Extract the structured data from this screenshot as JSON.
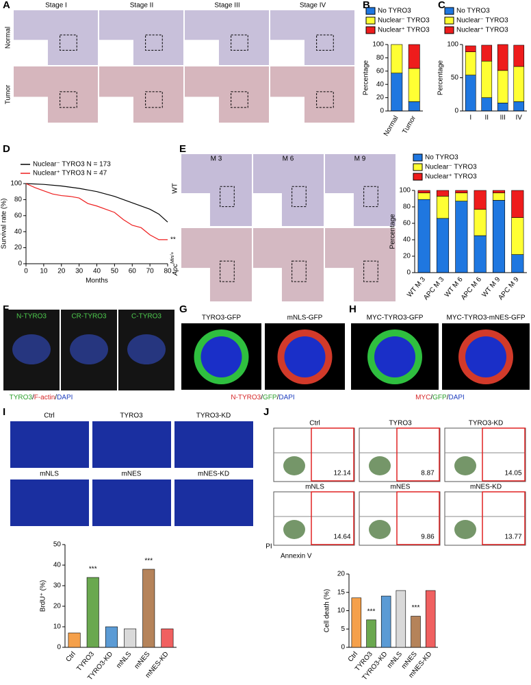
{
  "panel_labels": [
    "A",
    "B",
    "C",
    "D",
    "E",
    "F",
    "G",
    "H",
    "I",
    "J"
  ],
  "panel_a": {
    "columns": [
      "Stage I",
      "Stage II",
      "Stage III",
      "Stage IV"
    ],
    "rows": [
      "Normal",
      "Tumor"
    ]
  },
  "panel_e": {
    "columns": [
      "M 3",
      "M 6",
      "M 9"
    ],
    "wild_type": "WT",
    "mutant": {
      "base": "Apc",
      "sup": "Min/+"
    }
  },
  "panel_f": {
    "columns": [
      "N-TYRO3",
      "CR-TYRO3",
      "C-TYRO3"
    ],
    "caption": [
      {
        "text": "TYRO3",
        "color": "#2ca02c"
      },
      {
        "text": "/",
        "color": "#000000"
      },
      {
        "text": "F-actin",
        "color": "#d62728"
      },
      {
        "text": "/",
        "color": "#000000"
      },
      {
        "text": "DAPI",
        "color": "#1f3fbf"
      }
    ]
  },
  "panel_g": {
    "columns": [
      "TYRO3-GFP",
      "mNLS-GFP"
    ],
    "caption": [
      {
        "text": "N-TYRO3",
        "color": "#d62728"
      },
      {
        "text": "/",
        "color": "#000000"
      },
      {
        "text": "GFP",
        "color": "#2ca02c"
      },
      {
        "text": "/",
        "color": "#000000"
      },
      {
        "text": "DAPI",
        "color": "#1f3fbf"
      }
    ]
  },
  "panel_h": {
    "columns": [
      "MYC-TYRO3-GFP",
      "MYC-TYRO3-mNES-GFP"
    ],
    "caption": [
      {
        "text": "MYC",
        "color": "#d62728"
      },
      {
        "text": "/",
        "color": "#000000"
      },
      {
        "text": "GFP",
        "color": "#2ca02c"
      },
      {
        "text": "/",
        "color": "#000000"
      },
      {
        "text": "DAPI",
        "color": "#1f3fbf"
      }
    ]
  },
  "panel_i": {
    "images": [
      "Ctrl",
      "TYRO3",
      "TYRO3-KD",
      "mNLS",
      "mNES",
      "mNES-KD"
    ]
  },
  "panel_j": {
    "plots": [
      {
        "label": "Ctrl",
        "value": 12.14
      },
      {
        "label": "TYRO3",
        "value": 8.87
      },
      {
        "label": "TYRO3-KD",
        "value": 14.05
      },
      {
        "label": "mNLS",
        "value": 14.64
      },
      {
        "label": "mNES",
        "value": 9.86
      },
      {
        "label": "mNES-KD",
        "value": 13.77
      }
    ],
    "y_label": "PI",
    "x_label": "Annexin V"
  },
  "chart_data": [
    {
      "type": "stacked_bar",
      "categories": [
        "Normal",
        "Tumor"
      ],
      "series": [
        {
          "name": "No TYRO3",
          "color": "#1f77e0",
          "values": [
            57,
            14
          ]
        },
        {
          "name": "Nuclear⁻ TYRO3",
          "color": "#ffff33",
          "values": [
            43,
            50
          ]
        },
        {
          "name": "Nuclear⁺ TYRO3",
          "color": "#ee1c1c",
          "values": [
            0,
            36
          ]
        }
      ],
      "ylim": [
        0,
        100
      ],
      "yticks": [
        0,
        20,
        40,
        60,
        80,
        100
      ],
      "y_label": "Percentage"
    },
    {
      "type": "stacked_bar",
      "categories": [
        "I",
        "II",
        "III",
        "IV"
      ],
      "series": [
        {
          "name": "No TYRO3",
          "color": "#1f77e0",
          "values": [
            54,
            20,
            12,
            14
          ]
        },
        {
          "name": "Nuclear⁻ TYRO3",
          "color": "#ffff33",
          "values": [
            35,
            55,
            49,
            53
          ]
        },
        {
          "name": "Nuclear⁺ TYRO3",
          "color": "#ee1c1c",
          "values": [
            9,
            24,
            39,
            32
          ]
        }
      ],
      "ylim": [
        0,
        100
      ],
      "yticks": [
        0,
        50,
        100
      ],
      "y_label": "Percentage"
    },
    {
      "type": "line",
      "series": [
        {
          "name": "Nuclear⁻ TYRO3 N = 173",
          "color": "#000000",
          "x": [
            0,
            10,
            20,
            30,
            40,
            50,
            60,
            70,
            75,
            80
          ],
          "values": [
            100,
            99,
            97,
            94,
            90,
            84,
            76,
            68,
            62,
            52
          ]
        },
        {
          "name": "Nuclear⁺ TYRO3 N = 47",
          "color": "#ee1c1c",
          "x": [
            0,
            5,
            10,
            15,
            20,
            25,
            30,
            35,
            40,
            45,
            50,
            55,
            60,
            65,
            70,
            75,
            80
          ],
          "values": [
            100,
            95,
            91,
            87,
            85,
            84,
            82,
            75,
            72,
            68,
            64,
            55,
            48,
            45,
            36,
            30,
            30
          ]
        }
      ],
      "xlim": [
        0,
        80
      ],
      "xticks": [
        0,
        10,
        20,
        30,
        40,
        50,
        60,
        70,
        80
      ],
      "ylim": [
        0,
        100
      ],
      "yticks": [
        0,
        20,
        40,
        60,
        80,
        100
      ],
      "x_label": "Months",
      "y_label": "Survival rate (%)",
      "annotation": "**"
    },
    {
      "type": "stacked_bar",
      "categories": [
        "WT M 3",
        "APC M 3",
        "WT M 6",
        "APC M 6",
        "WT M 9",
        "APC M 9"
      ],
      "series": [
        {
          "name": "No TYRO3",
          "color": "#1f77e0",
          "values": [
            89,
            66,
            87,
            45,
            88,
            22
          ]
        },
        {
          "name": "Nuclear⁻ TYRO3",
          "color": "#ffff33",
          "values": [
            8,
            27,
            10,
            32,
            9,
            45
          ]
        },
        {
          "name": "Nuclear⁺ TYRO3",
          "color": "#ee1c1c",
          "values": [
            3,
            7,
            3,
            23,
            3,
            33
          ]
        }
      ],
      "ylim": [
        0,
        100
      ],
      "yticks": [
        0,
        20,
        40,
        60,
        80,
        100
      ],
      "y_label": "Percentage"
    },
    {
      "type": "bar",
      "categories": [
        "Ctrl",
        "TYRO3",
        "TYRO3-KD",
        "mNLS",
        "mNES",
        "mNES-KD"
      ],
      "values": [
        7,
        34,
        10,
        9,
        38,
        9
      ],
      "colors": [
        "#f5a04a",
        "#6aa84f",
        "#5b9bd5",
        "#d9d9d9",
        "#b5835a",
        "#f06060"
      ],
      "significance": [
        null,
        "***",
        null,
        null,
        "***",
        null
      ],
      "ylim": [
        0,
        50
      ],
      "yticks": [
        0,
        10,
        20,
        30,
        40,
        50
      ],
      "y_label": "BrdU⁺ (%)"
    },
    {
      "type": "bar",
      "categories": [
        "Ctrl",
        "TYRO3",
        "TYRO3-KD",
        "mNLS",
        "mNES",
        "mNES-KD"
      ],
      "values": [
        13.5,
        7.5,
        14,
        15.5,
        8.5,
        15.5
      ],
      "colors": [
        "#f5a04a",
        "#6aa84f",
        "#5b9bd5",
        "#d9d9d9",
        "#b5835a",
        "#f06060"
      ],
      "significance": [
        null,
        "***",
        null,
        null,
        "***",
        null
      ],
      "ylim": [
        0,
        20
      ],
      "yticks": [
        0,
        5,
        10,
        15,
        20
      ],
      "y_label": "Cell death (%)"
    }
  ]
}
